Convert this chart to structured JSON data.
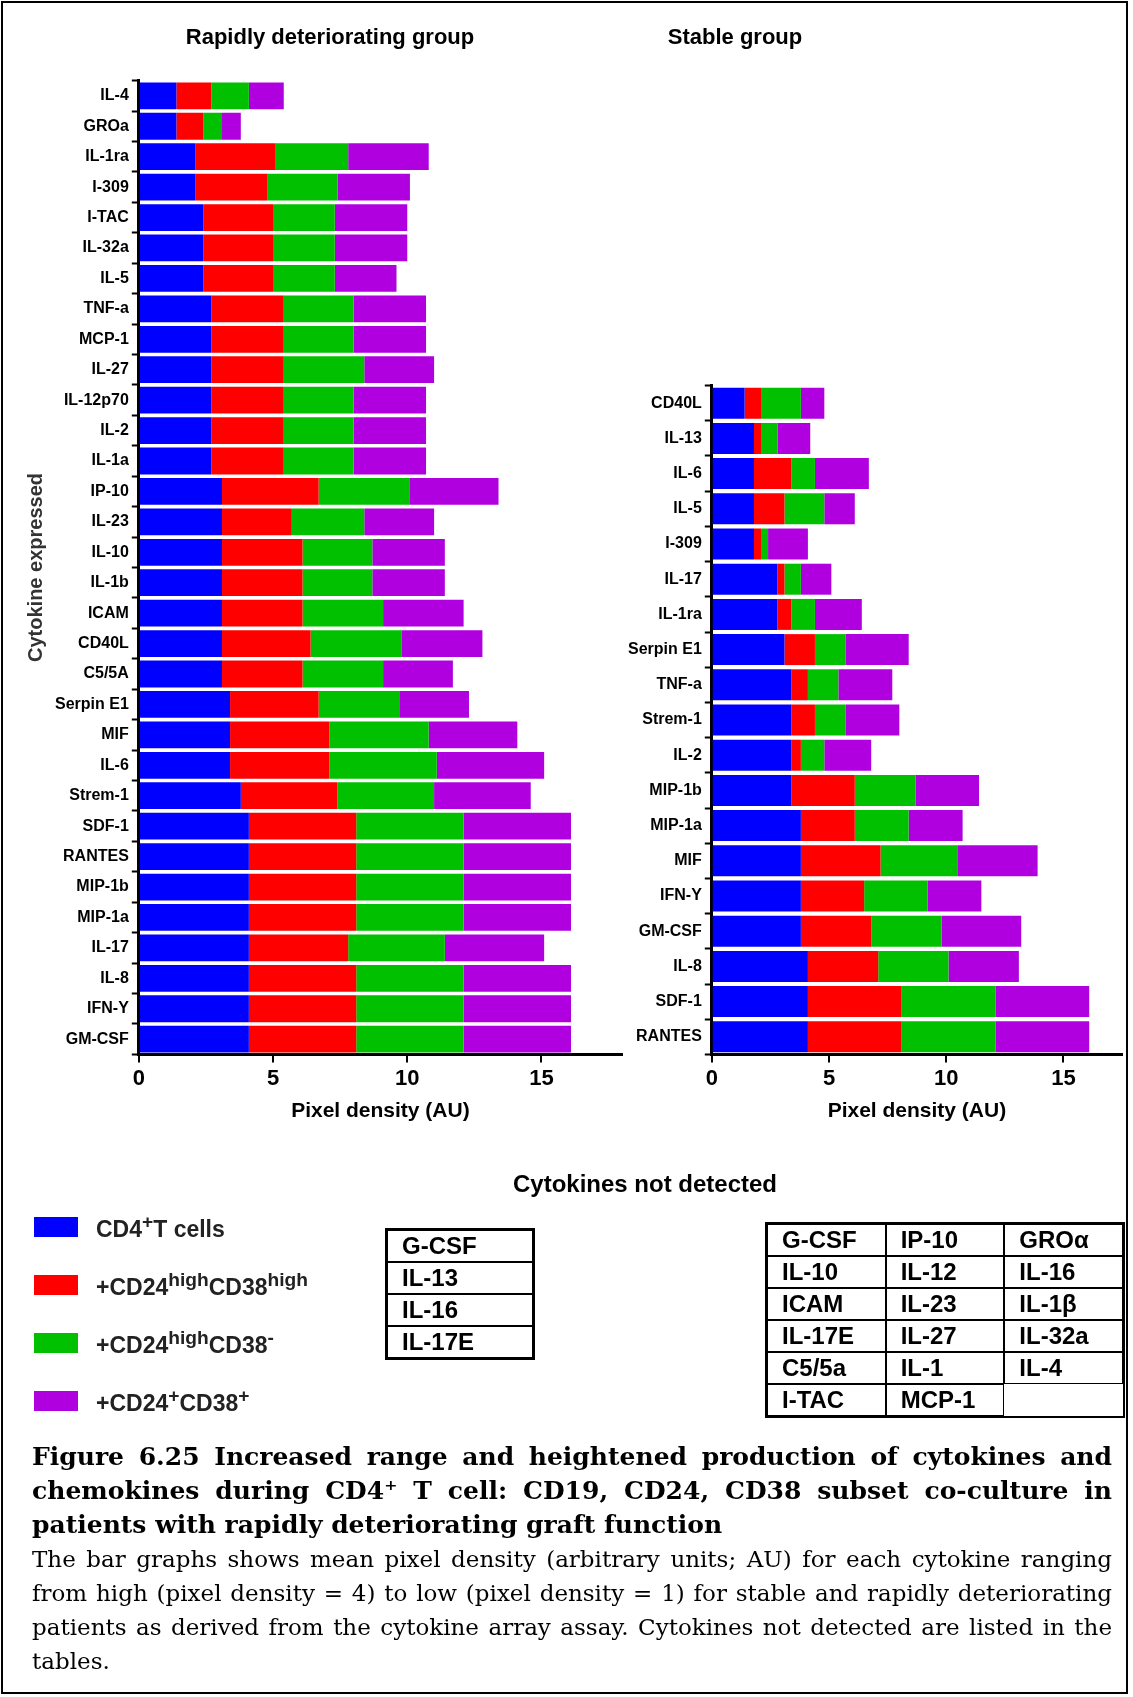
{
  "chart_data": [
    {
      "type": "bar",
      "orientation": "horizontal",
      "stacked": true,
      "title": "Rapidly deteriorating group",
      "xlabel": "Pixel density (AU)",
      "ylabel": "Cytokine expressed",
      "legend": "bottom left",
      "grid": false,
      "xlim": [
        0,
        18
      ],
      "xticks": [
        0,
        5,
        10,
        15
      ],
      "categories": [
        "IL-4",
        "GROa",
        "IL-1ra",
        "I-309",
        "I-TAC",
        "IL-32a",
        "IL-5",
        "TNF-a",
        "MCP-1",
        "IL-27",
        "IL-12p70",
        "IL-2",
        "IL-1a",
        "IP-10",
        "IL-23",
        "IL-10",
        "IL-1b",
        "ICAM",
        "CD40L",
        "C5/5A",
        "Serpin E1",
        "MIF",
        "IL-6",
        "Strem-1",
        "SDF-1",
        "RANTES",
        "MIP-1b",
        "MIP-1a",
        "IL-17",
        "IL-8",
        "IFN-Y",
        "GM-CSF"
      ],
      "series": [
        {
          "name": "CD4$^{+}$T cells",
          "color": "#0000ff",
          "values": [
            1.4,
            1.4,
            2.1,
            2.1,
            2.4,
            2.4,
            2.4,
            2.7,
            2.7,
            2.7,
            2.7,
            2.7,
            2.7,
            3.1,
            3.1,
            3.1,
            3.1,
            3.1,
            3.1,
            3.1,
            3.4,
            3.4,
            3.4,
            3.8,
            4.1,
            4.1,
            4.1,
            4.1,
            4.1,
            4.1,
            4.1,
            4.1
          ]
        },
        {
          "name": "+CD24$^{high}$CD38$^{high}$",
          "color": "#ff0000",
          "values": [
            1.3,
            1.0,
            3.0,
            2.7,
            2.6,
            2.6,
            2.6,
            2.7,
            2.7,
            2.7,
            2.7,
            2.7,
            2.7,
            3.6,
            2.6,
            3.0,
            3.0,
            3.0,
            3.3,
            3.0,
            3.3,
            3.7,
            3.7,
            3.6,
            4.0,
            4.0,
            4.0,
            4.0,
            3.7,
            4.0,
            4.0,
            4.0
          ]
        },
        {
          "name": "+CD24$^{high}$CD38$^{-}$",
          "color": "#00c000",
          "values": [
            1.4,
            0.7,
            2.7,
            2.6,
            2.3,
            2.3,
            2.3,
            2.6,
            2.6,
            3.0,
            2.6,
            2.6,
            2.6,
            3.4,
            2.7,
            2.6,
            2.6,
            3.0,
            3.4,
            3.0,
            3.0,
            3.7,
            4.0,
            3.6,
            4.0,
            4.0,
            4.0,
            4.0,
            3.6,
            4.0,
            4.0,
            4.0
          ]
        },
        {
          "name": "+CD24$^{+}$CD38$^{+}$",
          "color": "#b000e0",
          "values": [
            1.3,
            0.7,
            3.0,
            2.7,
            2.7,
            2.7,
            2.3,
            2.7,
            2.7,
            2.6,
            2.7,
            2.7,
            2.7,
            3.3,
            2.6,
            2.7,
            2.7,
            3.0,
            3.0,
            2.6,
            2.6,
            3.3,
            4.0,
            3.6,
            4.0,
            4.0,
            4.0,
            4.0,
            3.7,
            4.0,
            4.0,
            4.0
          ]
        }
      ],
      "annotations": [
        "G-CSF",
        "IL-13",
        "IL-16",
        "IL-17E"
      ]
    },
    {
      "type": "bar",
      "orientation": "horizontal",
      "stacked": true,
      "title": "Stable group",
      "xlabel": "Pixel density (AU)",
      "grid": false,
      "xlim": [
        0,
        17.5
      ],
      "xticks": [
        0,
        5,
        10,
        15
      ],
      "categories": [
        "CD40L",
        "IL-13",
        "IL-6",
        "IL-5",
        "I-309",
        "IL-17",
        "IL-1ra",
        "Serpin E1",
        "TNF-a",
        "Strem-1",
        "IL-2",
        "MIP-1b",
        "MIP-1a",
        "MIF",
        "IFN-Y",
        "GM-CSF",
        "IL-8",
        "SDF-1",
        "RANTES"
      ],
      "series": [
        {
          "color": "#0000ff",
          "values": [
            1.4,
            1.8,
            1.8,
            1.8,
            1.8,
            2.8,
            2.8,
            3.1,
            3.4,
            3.4,
            3.4,
            3.4,
            3.8,
            3.8,
            3.8,
            3.8,
            4.1,
            4.1,
            4.1
          ]
        },
        {
          "color": "#ff0000",
          "values": [
            0.7,
            0.3,
            1.6,
            1.3,
            0.3,
            0.3,
            0.6,
            1.3,
            0.7,
            1.0,
            0.4,
            2.7,
            2.3,
            3.4,
            2.7,
            3.0,
            3.0,
            4.0,
            4.0
          ]
        },
        {
          "color": "#00c000",
          "values": [
            1.7,
            0.7,
            1.0,
            1.7,
            0.3,
            0.7,
            1.0,
            1.3,
            1.3,
            1.3,
            1.0,
            2.6,
            2.3,
            3.3,
            2.7,
            3.0,
            3.0,
            4.0,
            4.0
          ]
        },
        {
          "color": "#b000e0",
          "values": [
            1.0,
            1.4,
            2.3,
            1.3,
            1.7,
            1.3,
            2.0,
            2.7,
            2.3,
            2.3,
            2.0,
            2.7,
            2.3,
            3.4,
            2.3,
            3.4,
            3.0,
            4.0,
            4.0
          ]
        }
      ],
      "annotations": [
        "Cytokines not detected",
        "G-CSF",
        "IP-10",
        "GROα",
        "IL-10",
        "IL-12",
        "IL-16",
        "ICAM",
        "IL-23",
        "IL-1β",
        "IL-17E",
        "IL-27",
        "IL-32a",
        "C5/5a",
        "IL-1",
        "IL-4",
        "I-TAC",
        "MCP-1",
        "Figure 6.25   Increased range and heightened production of cytokines and chemokines during CD4⁺ T cell: CD19, CD24, CD38 subset co-culture in patients with rapidly deteriorating graft function",
        "The bar graphs shows mean pixel density (arbitrary units; AU) for each cytokine ranging from high (pixel density = 4) to low (pixel density = 1) for stable and rapidly deteriorating patients as derived from the cytokine array assay. Cytokines not detected are listed in the tables."
      ]
    }
  ]
}
